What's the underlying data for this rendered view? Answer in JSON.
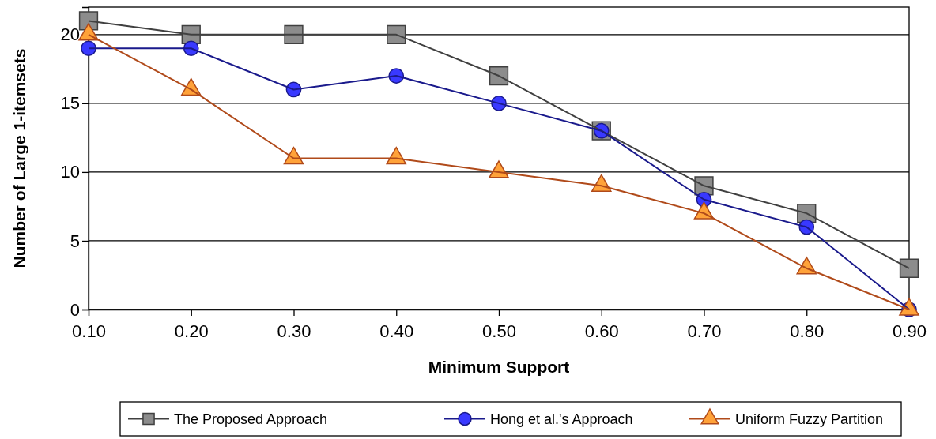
{
  "chart_data": {
    "type": "line",
    "xlabel": "Minimum Support",
    "ylabel": "Number of Large 1-itemsets",
    "x": [
      0.1,
      0.2,
      0.3,
      0.4,
      0.5,
      0.6,
      0.7,
      0.8,
      0.9
    ],
    "xlim": [
      0.1,
      0.9
    ],
    "xticks": [
      {
        "value": 0.1,
        "label": "0.10"
      },
      {
        "value": 0.2,
        "label": "0.20"
      },
      {
        "value": 0.3,
        "label": "0.30"
      },
      {
        "value": 0.4,
        "label": "0.40"
      },
      {
        "value": 0.5,
        "label": "0.50"
      },
      {
        "value": 0.6,
        "label": "0.60"
      },
      {
        "value": 0.7,
        "label": "0.70"
      },
      {
        "value": 0.8,
        "label": "0.80"
      },
      {
        "value": 0.9,
        "label": "0.90"
      }
    ],
    "ylim": [
      0,
      22
    ],
    "yticks": [
      0,
      5,
      10,
      15,
      20
    ],
    "grid": "y",
    "legend": "bottom",
    "series": [
      {
        "name": "The Proposed Approach",
        "color": "#404040",
        "marker": "square",
        "values": [
          21,
          20,
          20,
          20,
          17,
          13,
          9,
          7,
          3
        ]
      },
      {
        "name": "Hong et al.'s Approach",
        "color": "#1a1a8c",
        "marker": "circle",
        "values": [
          19,
          19,
          16,
          17,
          15,
          13,
          8,
          6,
          0
        ]
      },
      {
        "name": "Uniform Fuzzy Partition",
        "color": "#b04a1a",
        "marker": "triangle",
        "values": [
          20,
          16,
          11,
          11,
          10,
          9,
          7,
          3,
          0
        ]
      }
    ]
  }
}
